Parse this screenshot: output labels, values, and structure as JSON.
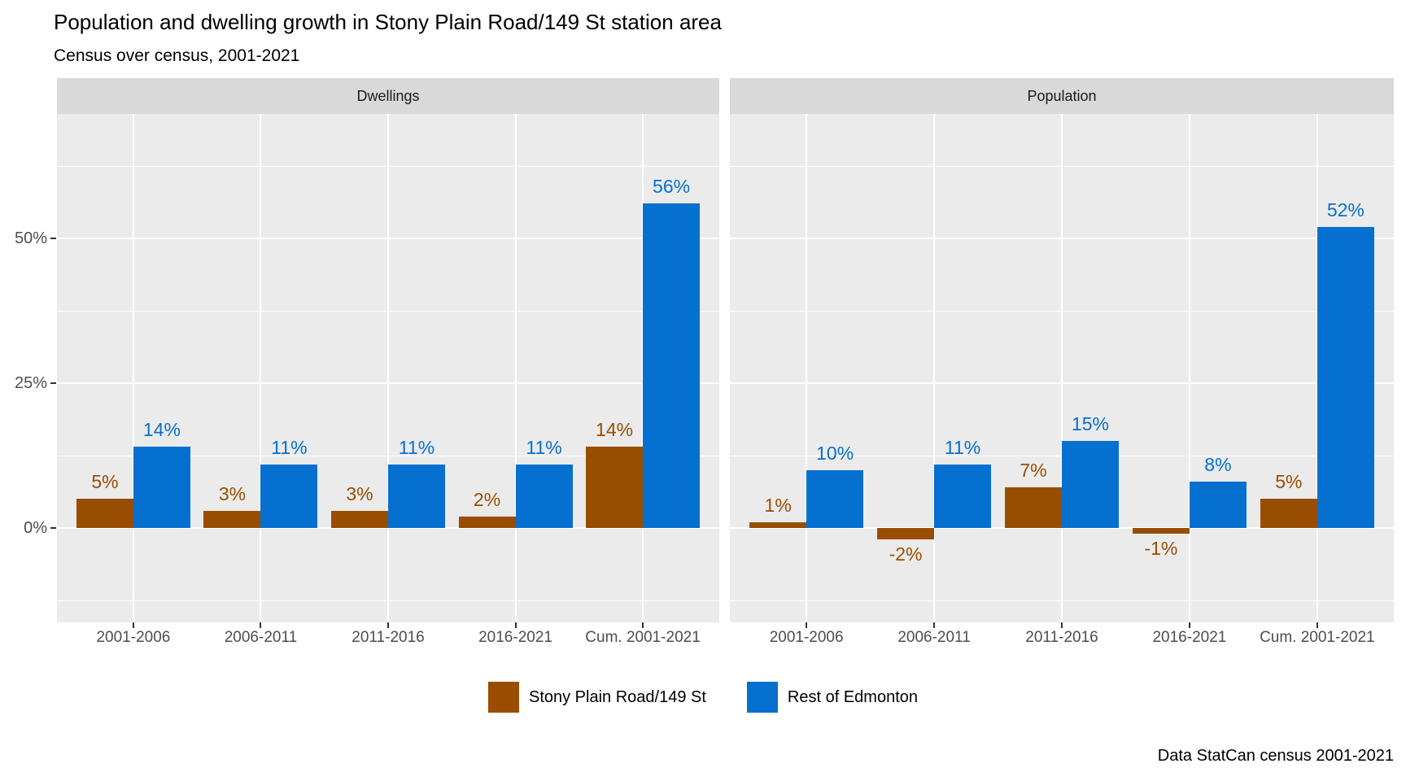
{
  "title": "Population and dwelling growth in Stony Plain Road/149 St station area",
  "subtitle": "Census over census, 2001-2021",
  "caption": "Data StatCan census 2001-2021",
  "colors": {
    "local_series": "#994d00",
    "rest_series": "#0570d0",
    "panel_background": "#ebebeb",
    "strip_background": "#d9d9d9",
    "gridline": "#ffffff",
    "axis_text": "#4d4d4d",
    "strip_text": "#1a1a1a"
  },
  "legend": {
    "items": [
      {
        "label": "Stony Plain Road/149 St",
        "color": "#994d00"
      },
      {
        "label": "Rest of Edmonton",
        "color": "#0570d0"
      }
    ]
  },
  "axis": {
    "y_tick_labels": [
      "50%",
      "25%",
      "0%"
    ],
    "y_tick_values": [
      50,
      25,
      0
    ]
  },
  "chart_data": {
    "type": "bar",
    "categories": [
      "2001-2006",
      "2006-2011",
      "2011-2016",
      "2016-2021",
      "Cum. 2001-2021"
    ],
    "facets": [
      {
        "label": "Dwellings",
        "series": [
          {
            "name": "Stony Plain Road/149 St",
            "color": "#994d00",
            "values": [
              5,
              3,
              3,
              2,
              14
            ],
            "labels": [
              "5%",
              "3%",
              "3%",
              "2%",
              "14%"
            ]
          },
          {
            "name": "Rest of Edmonton",
            "color": "#0570d0",
            "values": [
              14,
              11,
              11,
              11,
              56
            ],
            "labels": [
              "14%",
              "11%",
              "11%",
              "11%",
              "56%"
            ]
          }
        ]
      },
      {
        "label": "Population",
        "series": [
          {
            "name": "Stony Plain Road/149 St",
            "color": "#994d00",
            "values": [
              1,
              -2,
              7,
              -1,
              5
            ],
            "labels": [
              "1%",
              "-2%",
              "7%",
              "-1%",
              "5%"
            ]
          },
          {
            "name": "Rest of Edmonton",
            "color": "#0570d0",
            "values": [
              10,
              11,
              15,
              8,
              52
            ],
            "labels": [
              "10%",
              "11%",
              "15%",
              "8%",
              "52%"
            ]
          }
        ]
      }
    ],
    "ylabel": "",
    "xlabel": "",
    "ylim": [
      -16.3,
      71.3
    ],
    "grid": {
      "major_y": [
        0,
        25,
        50
      ],
      "minor_y": [
        -12.5,
        12.5,
        37.5,
        62.5
      ]
    },
    "legend_position": "bottom"
  }
}
